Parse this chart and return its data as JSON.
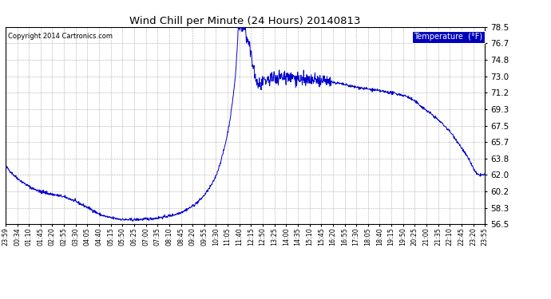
{
  "title": "Wind Chill per Minute (24 Hours) 20140813",
  "copyright": "Copyright 2014 Cartronics.com",
  "legend_label": "Temperature  (°F)",
  "background_color": "#ffffff",
  "plot_bg_color": "#ffffff",
  "line_color": "#0000cc",
  "grid_color": "#999999",
  "ylim": [
    56.5,
    78.5
  ],
  "yticks": [
    56.5,
    58.3,
    60.2,
    62.0,
    63.8,
    65.7,
    67.5,
    69.3,
    71.2,
    73.0,
    74.8,
    76.7,
    78.5
  ],
  "xtick_labels": [
    "23:59",
    "00:34",
    "01:10",
    "01:45",
    "02:20",
    "02:55",
    "03:30",
    "04:05",
    "04:40",
    "05:15",
    "05:50",
    "06:25",
    "07:00",
    "07:35",
    "08:10",
    "08:45",
    "09:20",
    "09:55",
    "10:30",
    "11:05",
    "11:40",
    "12:15",
    "12:50",
    "13:25",
    "14:00",
    "14:35",
    "15:10",
    "15:45",
    "16:20",
    "16:55",
    "17:30",
    "18:05",
    "18:40",
    "19:15",
    "19:50",
    "20:25",
    "21:00",
    "21:35",
    "22:10",
    "22:45",
    "23:20",
    "23:55"
  ],
  "n_points": 1440,
  "seed": 42,
  "key_x": [
    0,
    40,
    100,
    180,
    250,
    290,
    320,
    370,
    430,
    500,
    560,
    620,
    660,
    690,
    700,
    710,
    730,
    760,
    800,
    850,
    900,
    950,
    1000,
    1050,
    1100,
    1150,
    1200,
    1260,
    1330,
    1390,
    1420,
    1439
  ],
  "key_y": [
    63.0,
    61.5,
    60.2,
    59.5,
    58.3,
    57.5,
    57.2,
    57.0,
    57.1,
    57.5,
    58.5,
    61.0,
    65.5,
    73.0,
    78.3,
    78.5,
    76.5,
    72.0,
    72.8,
    73.0,
    72.5,
    72.5,
    72.2,
    71.8,
    71.5,
    71.2,
    70.8,
    69.3,
    67.0,
    63.8,
    62.0,
    62.0
  ]
}
